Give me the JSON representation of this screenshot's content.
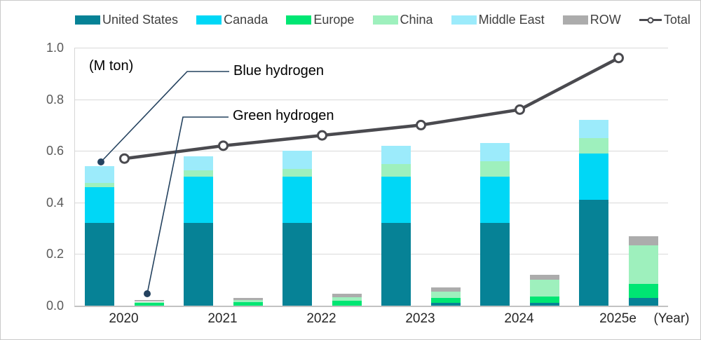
{
  "annotations": {
    "unit_label": "(M ton)",
    "blue_hydrogen_label": "Blue hydrogen",
    "green_hydrogen_label": "Green hydrogen",
    "year_axis_label": "(Year)",
    "leader_color": "#24425f"
  },
  "legend": {
    "items": [
      {
        "label": "United States",
        "color": "#068296",
        "type": "swatch"
      },
      {
        "label": "Canada",
        "color": "#00d7f6",
        "type": "swatch"
      },
      {
        "label": "Europe",
        "color": "#00e673",
        "type": "swatch"
      },
      {
        "label": "China",
        "color": "#9ef0bd",
        "type": "swatch"
      },
      {
        "label": "Middle East",
        "color": "#9cebfb",
        "type": "swatch"
      },
      {
        "label": "ROW",
        "color": "#acacac",
        "type": "swatch"
      },
      {
        "label": "Total",
        "color": "#4a4a4f",
        "type": "line-marker"
      }
    ]
  },
  "chart_data": {
    "type": "bar",
    "subtype": "stacked-grouped-with-line",
    "title": "",
    "ylabel": "(M ton)",
    "xlabel": "(Year)",
    "ylim": [
      0,
      1.0
    ],
    "yticks": [
      0.0,
      0.2,
      0.4,
      0.6,
      0.8,
      1.0
    ],
    "grid": true,
    "legend_position": "top",
    "categories": [
      "2020",
      "2021",
      "2022",
      "2023",
      "2024",
      "2025e"
    ],
    "bar_groups_per_category": [
      "Blue hydrogen",
      "Green hydrogen"
    ],
    "series": [
      {
        "name": "United States",
        "color": "#068296",
        "blue": [
          0.32,
          0.32,
          0.32,
          0.32,
          0.32,
          0.41
        ],
        "green": [
          0,
          0,
          0,
          0.012,
          0.01,
          0.03
        ]
      },
      {
        "name": "Canada",
        "color": "#00d7f6",
        "blue": [
          0.14,
          0.18,
          0.18,
          0.18,
          0.18,
          0.18
        ],
        "green": [
          0,
          0,
          0,
          0,
          0,
          0
        ]
      },
      {
        "name": "Europe",
        "color": "#00e673",
        "blue": [
          0,
          0,
          0,
          0,
          0,
          0
        ],
        "green": [
          0.01,
          0.013,
          0.018,
          0.018,
          0.025,
          0.055
        ]
      },
      {
        "name": "China",
        "color": "#9ef0bd",
        "blue": [
          0.015,
          0.025,
          0.03,
          0.05,
          0.06,
          0.06
        ],
        "green": [
          0.005,
          0.009,
          0.015,
          0.025,
          0.065,
          0.15
        ]
      },
      {
        "name": "Middle East",
        "color": "#9cebfb",
        "blue": [
          0.065,
          0.055,
          0.07,
          0.07,
          0.07,
          0.07
        ],
        "green": [
          0,
          0,
          0,
          0,
          0,
          0
        ]
      },
      {
        "name": "ROW",
        "color": "#acacac",
        "blue": [
          0,
          0,
          0,
          0,
          0,
          0
        ],
        "green": [
          0.007,
          0.009,
          0.012,
          0.015,
          0.02,
          0.035
        ]
      }
    ],
    "total_line": {
      "name": "Total",
      "color": "#4a4a4f",
      "values": [
        0.57,
        0.62,
        0.66,
        0.7,
        0.76,
        0.96
      ]
    }
  }
}
